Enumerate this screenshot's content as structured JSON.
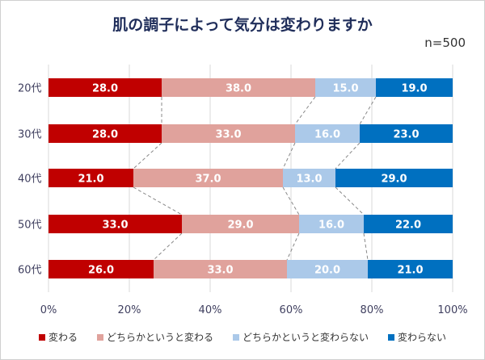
{
  "chart_data": {
    "type": "bar",
    "orientation": "horizontal",
    "stacked": "percent",
    "title": "肌の調子によって気分は変わりますか",
    "note": "n=500",
    "categories": [
      "20代",
      "30代",
      "40代",
      "50代",
      "60代"
    ],
    "series": [
      {
        "name": "変わる",
        "color": "#c00000",
        "values": [
          28.0,
          28.0,
          21.0,
          33.0,
          26.0
        ]
      },
      {
        "name": "どちらかというと変わる",
        "color": "#e0a29c",
        "values": [
          38.0,
          33.0,
          37.0,
          29.0,
          33.0
        ]
      },
      {
        "name": "どちらかというと変わらない",
        "color": "#abc9e9",
        "values": [
          15.0,
          16.0,
          13.0,
          16.0,
          20.0
        ]
      },
      {
        "name": "変わらない",
        "color": "#0070c0",
        "values": [
          19.0,
          23.0,
          29.0,
          22.0,
          21.0
        ]
      }
    ],
    "xlim": [
      0,
      100
    ],
    "xticks": [
      "0%",
      "20%",
      "40%",
      "60%",
      "80%",
      "100%"
    ],
    "grid": true,
    "series_lines": true,
    "legend_position": "bottom"
  }
}
